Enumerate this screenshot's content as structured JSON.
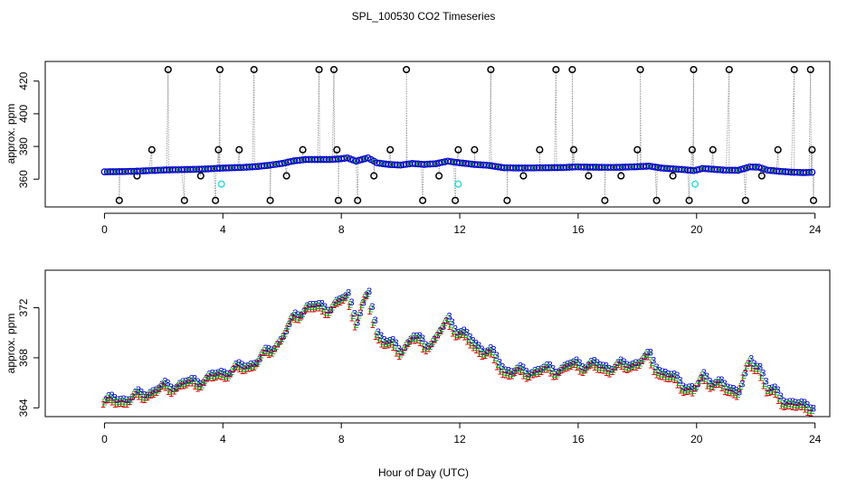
{
  "title": "SPL_100530  CO2 Timeseries",
  "xlabel": "Hour of Day (UTC)",
  "colors": {
    "line": "#999999",
    "level1": "#cc0000",
    "level2": "#00aa00",
    "level3": "#0000cc",
    "outlier": "#000000",
    "flag": "#33dddd"
  },
  "chart_data": [
    {
      "type": "scatter",
      "name": "top-panel",
      "ylabel": "approx. ppm",
      "xlim": [
        -2,
        24.5
      ],
      "ylim": [
        343,
        432
      ],
      "xticks": [
        0,
        4,
        8,
        12,
        16,
        20,
        24
      ],
      "yticks": [
        360,
        380,
        400,
        420
      ],
      "baseline": [
        [
          0,
          364.5
        ],
        [
          0.5,
          364.6
        ],
        [
          1,
          364.8
        ],
        [
          1.5,
          365.2
        ],
        [
          2,
          365.6
        ],
        [
          2.5,
          365.8
        ],
        [
          3,
          366.0
        ],
        [
          3.5,
          366.3
        ],
        [
          3.9,
          366.7
        ],
        [
          4.2,
          366.9
        ],
        [
          4.8,
          367.3
        ],
        [
          5.2,
          367.8
        ],
        [
          5.6,
          368.6
        ],
        [
          6.0,
          369.6
        ],
        [
          6.4,
          371.2
        ],
        [
          6.8,
          372.0
        ],
        [
          7.2,
          372.0
        ],
        [
          7.6,
          372.0
        ],
        [
          7.9,
          372.3
        ],
        [
          8.2,
          373.0
        ],
        [
          8.5,
          371.0
        ],
        [
          8.9,
          373.0
        ],
        [
          9.2,
          370.0
        ],
        [
          9.6,
          369.0
        ],
        [
          10.0,
          368.6
        ],
        [
          10.4,
          369.6
        ],
        [
          10.8,
          369.0
        ],
        [
          11.2,
          369.5
        ],
        [
          11.6,
          371.0
        ],
        [
          12.0,
          370.0
        ],
        [
          12.5,
          369.0
        ],
        [
          13.0,
          368.4
        ],
        [
          13.5,
          367.0
        ],
        [
          14.0,
          366.8
        ],
        [
          14.5,
          366.9
        ],
        [
          15.0,
          367.0
        ],
        [
          15.5,
          367.1
        ],
        [
          15.9,
          367.5
        ],
        [
          16.2,
          367.4
        ],
        [
          16.6,
          367.3
        ],
        [
          17.0,
          367.2
        ],
        [
          17.5,
          367.3
        ],
        [
          18.0,
          367.6
        ],
        [
          18.4,
          368.0
        ],
        [
          18.8,
          366.8
        ],
        [
          19.2,
          366.3
        ],
        [
          19.6,
          365.8
        ],
        [
          19.9,
          365.2
        ],
        [
          20.2,
          366.5
        ],
        [
          20.6,
          366.0
        ],
        [
          21.0,
          365.5
        ],
        [
          21.4,
          365.4
        ],
        [
          21.8,
          367.5
        ],
        [
          22.1,
          367.3
        ],
        [
          22.4,
          365.5
        ],
        [
          22.8,
          364.8
        ],
        [
          23.2,
          364.3
        ],
        [
          23.6,
          364.0
        ],
        [
          23.9,
          364.2
        ]
      ],
      "outliers_x": [
        0.5,
        1.1,
        1.6,
        2.15,
        2.7,
        3.25,
        3.75,
        3.85,
        3.9,
        4.55,
        5.05,
        5.6,
        6.15,
        6.7,
        7.25,
        7.75,
        7.85,
        7.9,
        8.55,
        9.1,
        9.65,
        10.2,
        10.75,
        11.3,
        11.85,
        11.95,
        12.5,
        13.05,
        13.6,
        14.15,
        14.7,
        15.25,
        15.8,
        15.85,
        16.35,
        16.9,
        17.45,
        18.0,
        18.1,
        18.65,
        19.2,
        19.75,
        19.85,
        19.9,
        20.55,
        21.1,
        21.65,
        22.2,
        22.75,
        23.3,
        23.85,
        23.9,
        23.95
      ],
      "outlier_levels": [
        "lo",
        "mid2",
        "mid",
        "hi",
        "lo",
        "mid2",
        "lo",
        "mid",
        "hi",
        "mid",
        "hi",
        "lo",
        "mid2",
        "mid",
        "hi",
        "hi",
        "mid",
        "lo",
        "lo",
        "mid2",
        "mid",
        "hi",
        "lo",
        "mid2",
        "lo",
        "mid",
        "mid",
        "hi",
        "lo",
        "mid2",
        "mid",
        "hi",
        "hi",
        "mid",
        "mid2",
        "lo",
        "mid2",
        "mid",
        "hi",
        "lo",
        "mid2",
        "lo",
        "mid",
        "hi",
        "mid",
        "hi",
        "lo",
        "mid2",
        "mid",
        "hi",
        "hi",
        "mid",
        "lo"
      ],
      "outlier_values": {
        "lo": 347,
        "mid2": 362,
        "mid": 378,
        "hi": 427
      },
      "flags": [
        [
          3.95,
          357
        ],
        [
          11.95,
          357
        ],
        [
          19.95,
          357
        ]
      ]
    },
    {
      "type": "line",
      "name": "bottom-panel",
      "ylabel": "approx. ppm",
      "xlim": [
        -2,
        24.5
      ],
      "ylim": [
        363.3,
        375.0
      ],
      "xticks": [
        0,
        4,
        8,
        12,
        16,
        20,
        24
      ],
      "yticks": [
        364,
        368,
        372
      ],
      "series_labels": [
        "1",
        "2",
        "3"
      ]
    }
  ]
}
